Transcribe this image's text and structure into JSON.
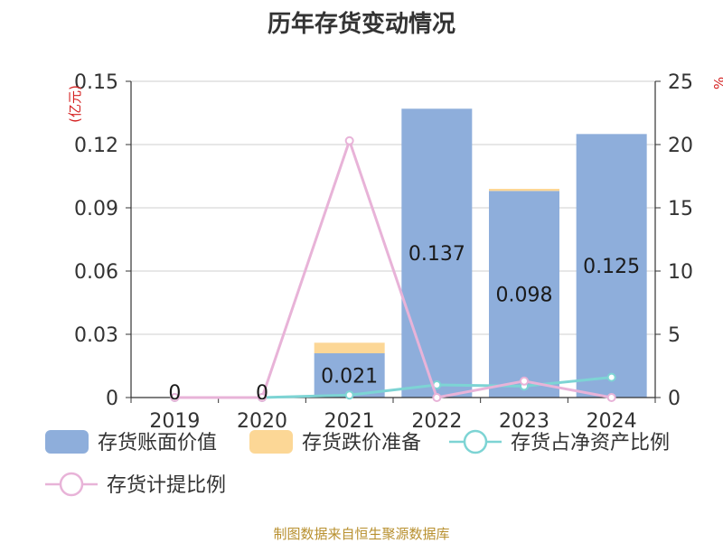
{
  "chart_data": {
    "type": "bar",
    "title": "历年存货变动情况",
    "y_left_unit": "(亿元)",
    "y_right_unit": "%",
    "categories": [
      "2019",
      "2020",
      "2021",
      "2022",
      "2023",
      "2024"
    ],
    "ylim_left": [
      0,
      0.15
    ],
    "yticks_left": [
      "0",
      "0.03",
      "0.06",
      "0.09",
      "0.12",
      "0.15"
    ],
    "ylim_right": [
      0,
      25
    ],
    "yticks_right": [
      "0",
      "5",
      "10",
      "15",
      "20",
      "25"
    ],
    "grid": true,
    "legend_position": "bottom",
    "series": [
      {
        "name": "存货账面价值",
        "type": "bar",
        "axis": "left",
        "color": "#8eaedb",
        "values": [
          0,
          0,
          0.021,
          0.137,
          0.098,
          0.125
        ],
        "data_labels": [
          "0",
          "0",
          "0.021",
          "0.137",
          "0.098",
          "0.125"
        ]
      },
      {
        "name": "存货跌价准备",
        "type": "bar",
        "axis": "left",
        "stacked": true,
        "color": "#fcd796",
        "values": [
          0,
          0,
          0.005,
          0,
          0.001,
          0
        ]
      },
      {
        "name": "存货占净资产比例",
        "type": "line",
        "axis": "right",
        "color": "#7dd4d4",
        "values": [
          0,
          0,
          0.2,
          1.0,
          0.9,
          1.6
        ]
      },
      {
        "name": "存货计提比例",
        "type": "line",
        "axis": "right",
        "color": "#e8b3d8",
        "values": [
          0,
          0,
          20.3,
          0,
          1.3,
          0
        ]
      }
    ]
  },
  "footer": {
    "source": "制图数据来自恒生聚源数据库"
  }
}
